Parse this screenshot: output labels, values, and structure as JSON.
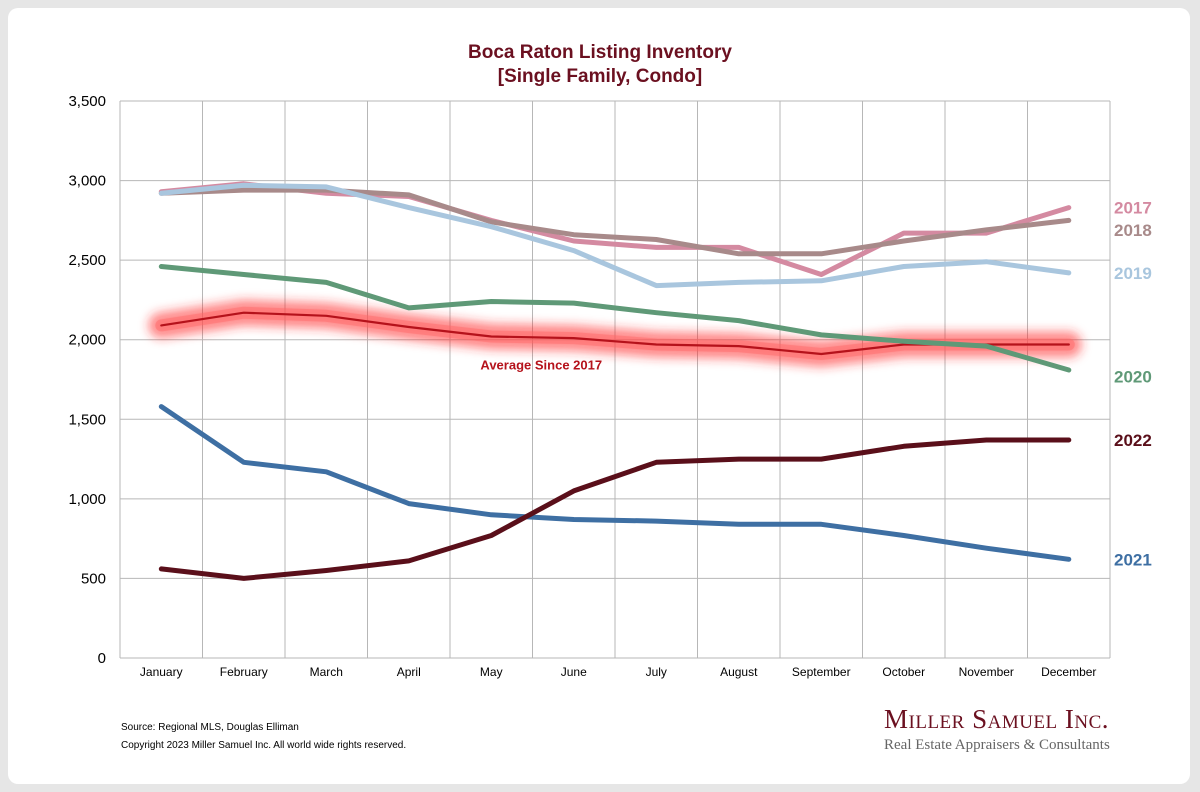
{
  "chart_data": {
    "type": "line",
    "title": "Boca Raton Listing Inventory",
    "subtitle": "[Single Family, Condo]",
    "categories": [
      "January",
      "February",
      "March",
      "April",
      "May",
      "June",
      "July",
      "August",
      "September",
      "October",
      "November",
      "December"
    ],
    "ylim": [
      0,
      3500
    ],
    "yticks": [
      0,
      500,
      1000,
      1500,
      2000,
      2500,
      3000,
      3500
    ],
    "ytick_labels": [
      "0",
      "500",
      "1,000",
      "1,500",
      "2,000",
      "2,500",
      "3,000",
      "3,500"
    ],
    "grid": true,
    "series": [
      {
        "name": "2017",
        "color": "#d48aa1",
        "values": [
          2930,
          2980,
          2920,
          2900,
          2750,
          2620,
          2580,
          2580,
          2410,
          2670,
          2670,
          2830
        ]
      },
      {
        "name": "2018",
        "color": "#a88a8a",
        "values": [
          2920,
          2940,
          2940,
          2910,
          2740,
          2660,
          2630,
          2540,
          2540,
          2620,
          2690,
          2750
        ]
      },
      {
        "name": "2019",
        "color": "#a9c6de",
        "values": [
          2920,
          2970,
          2960,
          2830,
          2710,
          2560,
          2340,
          2360,
          2370,
          2460,
          2490,
          2420
        ]
      },
      {
        "name": "2020",
        "color": "#5f9977",
        "values": [
          2460,
          2410,
          2360,
          2200,
          2240,
          2230,
          2170,
          2120,
          2030,
          1990,
          1960,
          1810
        ]
      },
      {
        "name": "2021",
        "color": "#3e6fa3",
        "values": [
          1580,
          1230,
          1170,
          970,
          900,
          870,
          860,
          840,
          840,
          770,
          690,
          620
        ]
      },
      {
        "name": "2022",
        "color": "#5a0f1a",
        "values": [
          560,
          500,
          550,
          610,
          770,
          1050,
          1230,
          1250,
          1250,
          1330,
          1370,
          1370
        ]
      }
    ],
    "average": {
      "label": "Average  Since 2017",
      "color": "#b5121b",
      "values": [
        2090,
        2170,
        2150,
        2080,
        2020,
        2010,
        1970,
        1960,
        1910,
        1970,
        1970,
        1970
      ]
    }
  },
  "footer": {
    "source": "Source: Regional MLS, Douglas Elliman",
    "copyright": "Copyright 2023 Miller Samuel Inc.  All world wide rights reserved."
  },
  "logo": {
    "name": "Miller Samuel Inc.",
    "tagline": "Real Estate Appraisers & Consultants",
    "color": "#6b1020"
  }
}
